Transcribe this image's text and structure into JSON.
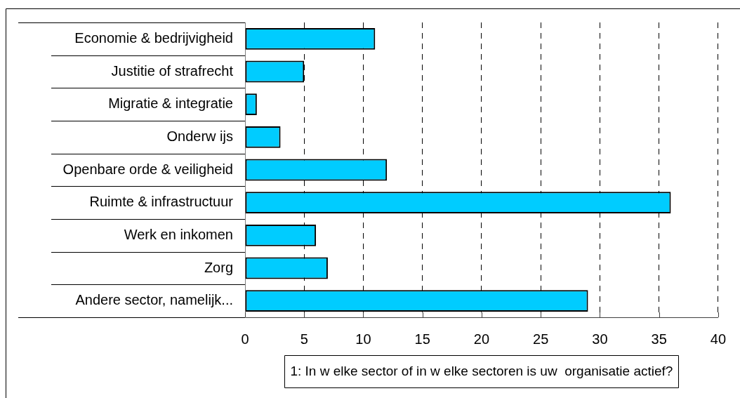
{
  "chart_data": {
    "type": "bar",
    "orientation": "horizontal",
    "categories": [
      "Economie & bedrijvigheid",
      "Justitie of strafrecht",
      "Migratie & integratie",
      "Onderw ijs",
      "Openbare orde & veiligheid",
      "Ruimte & infrastructuur",
      "Werk en inkomen",
      "Zorg",
      "Andere sector, namelijk..."
    ],
    "values": [
      11,
      5,
      1,
      3,
      12,
      36,
      6,
      7,
      29
    ],
    "color": "#00ccff",
    "xlim": [
      0,
      40
    ],
    "xticks": [
      0,
      5,
      10,
      15,
      20,
      25,
      30,
      35,
      40
    ],
    "grid": "x",
    "xlabel": "1: In w elke sector of in w elke sectoren is uw  organisatie actief?"
  }
}
